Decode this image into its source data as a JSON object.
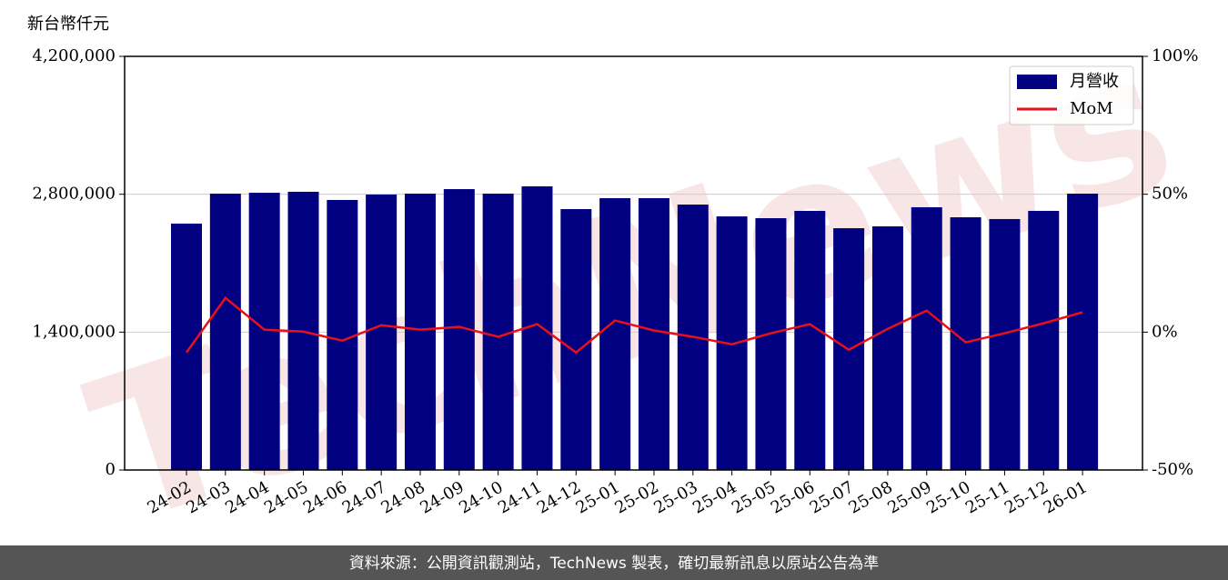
{
  "chart_data": {
    "type": "bar_line",
    "watermark": "TechNews",
    "y_label": "新台幣仟元",
    "categories": [
      "24-02",
      "24-03",
      "24-04",
      "24-05",
      "24-06",
      "24-07",
      "24-08",
      "24-09",
      "24-10",
      "24-11",
      "24-12",
      "25-01",
      "25-02",
      "25-03",
      "25-04",
      "25-05",
      "25-06",
      "25-07",
      "25-08",
      "25-09",
      "25-10",
      "25-11",
      "25-12",
      "26-01"
    ],
    "series": [
      {
        "name": "月營收",
        "color": "#000080",
        "values": [
          2502000,
          2806000,
          2815000,
          2825000,
          2742000,
          2797000,
          2806000,
          2852000,
          2806000,
          2880000,
          2649000,
          2760000,
          2760000,
          2695000,
          2575000,
          2557000,
          2631000,
          2455000,
          2474000,
          2668000,
          2566000,
          2548000,
          2631000,
          2806000
        ]
      },
      {
        "name": "MoM",
        "color": "#e8101a",
        "axis": "y2",
        "values": [
          -7.4,
          12.4,
          0.9,
          0.2,
          -3.1,
          2.5,
          0.9,
          1.9,
          -1.7,
          2.9,
          -7.4,
          4.2,
          0.6,
          -1.7,
          -4.4,
          -0.4,
          2.9,
          -6.4,
          1.2,
          7.8,
          -3.7,
          -0.4,
          3.2,
          7.2
        ]
      }
    ],
    "ylim": [
      0,
      4200000
    ],
    "yticks": [
      {
        "value": 0,
        "label": "0"
      },
      {
        "value": 1400000,
        "label": "1,400,000"
      },
      {
        "value": 2800000,
        "label": "2,800,000"
      },
      {
        "value": 4200000,
        "label": "4,200,000"
      }
    ],
    "y2lim": [
      -50,
      100
    ],
    "y2ticks": [
      {
        "value": -50,
        "label": "-50%"
      },
      {
        "value": 0,
        "label": "0%"
      },
      {
        "value": 50,
        "label": "50%"
      },
      {
        "value": 100,
        "label": "100%"
      }
    ],
    "grid": true,
    "legend": "upper right",
    "footer": "資料來源：公開資訊觀測站，TechNews 製表，確切最新訊息以原站公告為準"
  }
}
